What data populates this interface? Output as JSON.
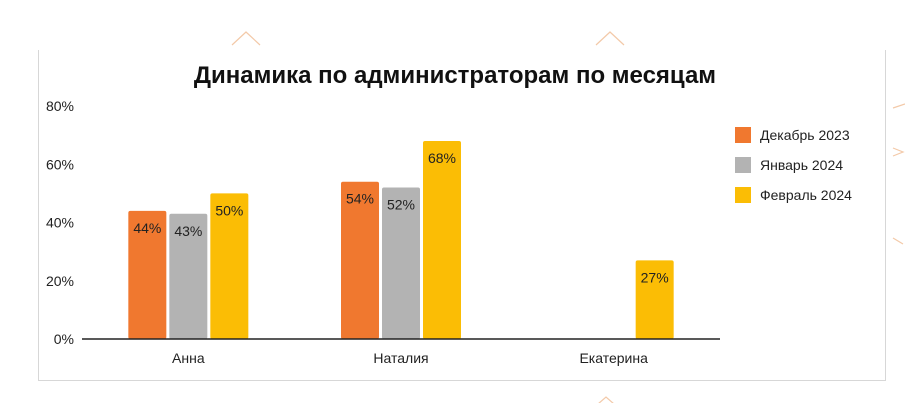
{
  "chart_data": {
    "type": "bar",
    "title": "Динамика по администраторам по месяцам",
    "categories": [
      "Анна",
      "Наталия",
      "Екатерина"
    ],
    "series": [
      {
        "name": "Декабрь 2023",
        "color": "#f0782f",
        "values": [
          44,
          54,
          null
        ],
        "labels": [
          "44%",
          "54%",
          ""
        ]
      },
      {
        "name": "Январь 2024",
        "color": "#b3b3b3",
        "values": [
          43,
          52,
          null
        ],
        "labels": [
          "43%",
          "52%",
          ""
        ]
      },
      {
        "name": "Февраль 2024",
        "color": "#fbbd05",
        "values": [
          50,
          68,
          27
        ],
        "labels": [
          "50%",
          "68%",
          "27%"
        ]
      }
    ],
    "yticks": [
      "0%",
      "20%",
      "40%",
      "60%",
      "80%"
    ],
    "ylim": [
      0,
      80
    ],
    "legend_position": "right",
    "grid": false
  }
}
